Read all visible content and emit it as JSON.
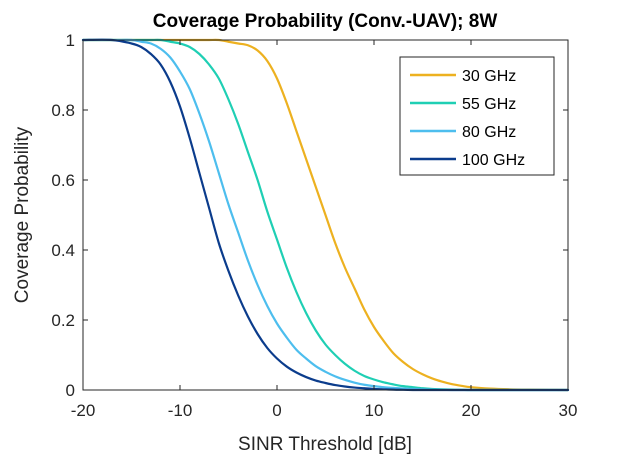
{
  "chart_data": {
    "type": "line",
    "title": "Coverage Probability (Conv.-UAV); 8W",
    "xlabel": "SINR Threshold [dB]",
    "ylabel": "Coverage Probability",
    "xlim": [
      -20,
      30
    ],
    "ylim": [
      0,
      1
    ],
    "xticks": [
      -20,
      -10,
      0,
      10,
      20,
      30
    ],
    "xtick_labels": [
      "-20",
      "-10",
      "0",
      "10",
      "20",
      "30"
    ],
    "yticks": [
      0,
      0.2,
      0.4,
      0.6,
      0.8,
      1
    ],
    "ytick_labels": [
      "0",
      "0.2",
      "0.4",
      "0.6",
      "0.8",
      "1"
    ],
    "grid": false,
    "legend_position": "top-right",
    "x": [
      -20,
      -17,
      -15,
      -14,
      -13,
      -12,
      -11,
      -10,
      -9,
      -8,
      -7,
      -6,
      -5,
      -4,
      -3,
      -2,
      -1,
      0,
      1,
      2,
      3,
      4,
      5,
      6,
      7,
      8,
      9,
      10,
      11,
      12,
      13,
      14,
      15,
      16,
      17,
      18,
      19,
      20,
      22,
      24,
      26,
      28,
      30
    ],
    "series": [
      {
        "name": "30 GHz",
        "color": "#EDB120",
        "values": [
          1,
          1,
          1,
          1,
          1,
          1,
          1,
          1,
          1,
          1,
          1,
          1,
          0.995,
          0.99,
          0.985,
          0.97,
          0.94,
          0.89,
          0.82,
          0.74,
          0.66,
          0.58,
          0.5,
          0.42,
          0.35,
          0.29,
          0.23,
          0.18,
          0.14,
          0.105,
          0.08,
          0.06,
          0.045,
          0.033,
          0.024,
          0.017,
          0.012,
          0.008,
          0.004,
          0.002,
          0.001,
          0.0005,
          0
        ]
      },
      {
        "name": "55 GHz",
        "color": "#1FCFB4",
        "values": [
          1,
          1,
          1,
          1,
          1,
          1,
          0.995,
          0.99,
          0.98,
          0.96,
          0.93,
          0.89,
          0.83,
          0.76,
          0.68,
          0.6,
          0.51,
          0.43,
          0.35,
          0.28,
          0.22,
          0.17,
          0.13,
          0.1,
          0.075,
          0.055,
          0.04,
          0.03,
          0.022,
          0.016,
          0.011,
          0.008,
          0.005,
          0.003,
          0.002,
          0.001,
          0.0005,
          0,
          0,
          0,
          0,
          0,
          0
        ]
      },
      {
        "name": "80 GHz",
        "color": "#4DBEEE",
        "values": [
          1,
          1,
          1,
          0.995,
          0.99,
          0.975,
          0.95,
          0.91,
          0.86,
          0.79,
          0.71,
          0.62,
          0.53,
          0.45,
          0.37,
          0.3,
          0.24,
          0.19,
          0.15,
          0.115,
          0.09,
          0.068,
          0.052,
          0.039,
          0.029,
          0.021,
          0.015,
          0.011,
          0.008,
          0.006,
          0.004,
          0.003,
          0.002,
          0.001,
          0.0005,
          0,
          0,
          0,
          0,
          0,
          0,
          0,
          0
        ]
      },
      {
        "name": "100 GHz",
        "color": "#0B3C8C",
        "values": [
          1,
          1,
          0.99,
          0.98,
          0.96,
          0.93,
          0.88,
          0.81,
          0.72,
          0.62,
          0.52,
          0.42,
          0.34,
          0.27,
          0.21,
          0.16,
          0.12,
          0.09,
          0.067,
          0.05,
          0.037,
          0.027,
          0.02,
          0.014,
          0.01,
          0.007,
          0.005,
          0.003,
          0.002,
          0.001,
          0.0005,
          0,
          0,
          0,
          0,
          0,
          0,
          0,
          0,
          0,
          0,
          0,
          0
        ]
      }
    ]
  }
}
